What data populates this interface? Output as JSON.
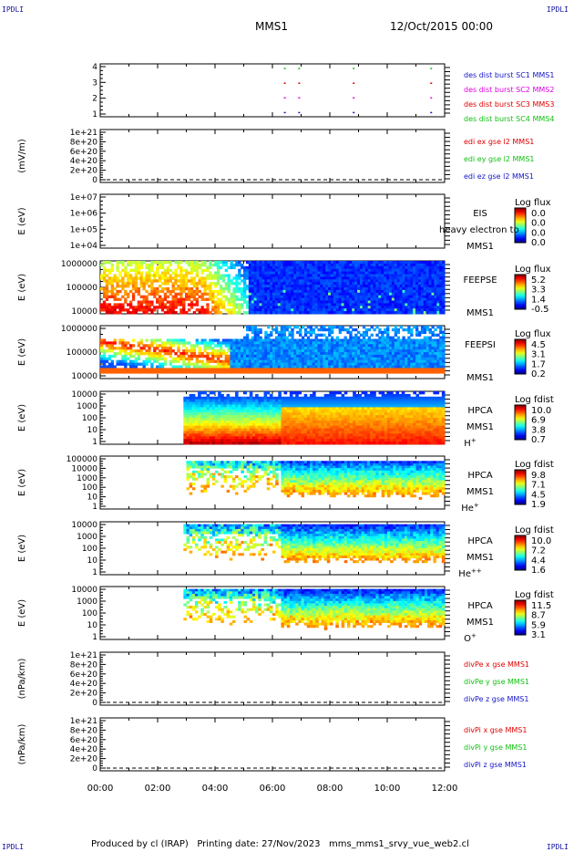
{
  "header": {
    "corner_label": "IPDLI",
    "spacecraft": "MMS1",
    "datetime": "12/Oct/2015 00:00"
  },
  "footer": {
    "text": "Produced by cl (IRAP)   Printing date: 27/Nov/2023   mms_mms1_srvy_vue_web2.cl"
  },
  "time_axis": {
    "ticks": [
      "00:00",
      "02:00",
      "04:00",
      "06:00",
      "08:00",
      "10:00",
      "12:00"
    ],
    "range_hours": [
      0,
      12
    ]
  },
  "colors": {
    "blue": "#1414c8",
    "magenta": "#e000e0",
    "red": "#e00000",
    "green": "#10c010"
  },
  "chart_data": [
    {
      "type": "scatter",
      "id": "burst",
      "ylabel": "",
      "yticks": [
        "1",
        "2",
        "3",
        "4"
      ],
      "ylim": [
        0.7,
        4.3
      ],
      "legend": [
        {
          "label": "des dist burst SC1 MMS1",
          "color": "#1414c8"
        },
        {
          "label": "des dist burst SC2 MMS2",
          "color": "#e000e0"
        },
        {
          "label": "des dist burst SC3 MMS3",
          "color": "#e00000"
        },
        {
          "label": "des dist burst SC4 MMS4",
          "color": "#10c010"
        }
      ],
      "series": [
        {
          "name": "des dist burst SC1 MMS1",
          "y": 1,
          "x": [
            6.4,
            6.9,
            8.8,
            11.5
          ]
        },
        {
          "name": "des dist burst SC2 MMS2",
          "y": 2,
          "x": [
            6.4,
            6.9,
            8.8,
            11.5
          ]
        },
        {
          "name": "des dist burst SC3 MMS3",
          "y": 3,
          "x": [
            6.4,
            6.9,
            8.8,
            11.5
          ]
        },
        {
          "name": "des dist burst SC4 MMS4",
          "y": 4,
          "x": [
            6.4,
            6.9,
            8.8,
            11.5
          ]
        }
      ]
    },
    {
      "type": "line",
      "id": "edi",
      "ylabel": "(mV/m)",
      "yticks": [
        "0",
        "2e+20",
        "4e+20",
        "6e+20",
        "8e+20",
        "1e+21"
      ],
      "ylim": [
        0,
        1.1e+21
      ],
      "legend": [
        {
          "label": "edi ex gse l2 MMS1",
          "color": "#e00000"
        },
        {
          "label": "edi ey gse l2 MMS1",
          "color": "#10c010"
        },
        {
          "label": "edi ez gse l2 MMS1",
          "color": "#1414c8"
        }
      ],
      "zero_line": true
    },
    {
      "type": "heatmap",
      "id": "eis",
      "ylabel": "E (eV)",
      "yticks": [
        "1e+04",
        "1e+05",
        "1e+06",
        "1e+07"
      ],
      "label_lines": [
        "EIS",
        "",
        "MMS1"
      ],
      "overlay_text": "heavy electron to",
      "colorbar": {
        "title": "Log flux",
        "ticks": [
          "0.0",
          "0.0",
          "0.0",
          "0.0"
        ]
      }
    },
    {
      "type": "heatmap",
      "id": "feepse",
      "ylabel": "E (eV)",
      "yticks": [
        "10000",
        "100000",
        "1000000"
      ],
      "label_lines": [
        "FEEPSE",
        "",
        "MMS1"
      ],
      "colorbar": {
        "title": "Log flux",
        "ticks": [
          "5.2",
          "3.3",
          "1.4",
          "-0.5"
        ]
      }
    },
    {
      "type": "heatmap",
      "id": "feepsi",
      "ylabel": "E (eV)",
      "yticks": [
        "10000",
        "100000",
        "1000000"
      ],
      "label_lines": [
        "FEEPSI",
        "",
        "MMS1"
      ],
      "colorbar": {
        "title": "Log flux",
        "ticks": [
          "4.5",
          "3.1",
          "1.7",
          "0.2"
        ]
      }
    },
    {
      "type": "heatmap",
      "id": "hpca_h",
      "ylabel": "E (eV)",
      "yticks": [
        "1",
        "10",
        "100",
        "1000",
        "10000"
      ],
      "label_lines": [
        "HPCA",
        "MMS1",
        "H+"
      ],
      "colorbar": {
        "title": "Log fdist",
        "ticks": [
          "10.0",
          "6.9",
          "3.8",
          "0.7"
        ]
      }
    },
    {
      "type": "heatmap",
      "id": "hpca_he",
      "ylabel": "E (eV)",
      "yticks": [
        "1",
        "10",
        "100",
        "1000",
        "10000",
        "100000"
      ],
      "label_lines": [
        "HPCA",
        "MMS1",
        "He+"
      ],
      "colorbar": {
        "title": "Log fdist",
        "ticks": [
          "9.8",
          "7.1",
          "4.5",
          "1.9"
        ]
      }
    },
    {
      "type": "heatmap",
      "id": "hpca_hepp",
      "ylabel": "E (eV)",
      "yticks": [
        "1",
        "10",
        "100",
        "1000",
        "10000"
      ],
      "label_lines": [
        "HPCA",
        "MMS1",
        "He++"
      ],
      "colorbar": {
        "title": "Log fdist",
        "ticks": [
          "10.0",
          "7.2",
          "4.4",
          "1.6"
        ]
      }
    },
    {
      "type": "heatmap",
      "id": "hpca_o",
      "ylabel": "E (eV)",
      "yticks": [
        "1",
        "10",
        "100",
        "1000",
        "10000"
      ],
      "label_lines": [
        "HPCA",
        "MMS1",
        "O+"
      ],
      "colorbar": {
        "title": "Log fdist",
        "ticks": [
          "11.5",
          "8.7",
          "5.9",
          "3.1"
        ]
      }
    },
    {
      "type": "line",
      "id": "divpe",
      "ylabel": "(nPa/km)",
      "yticks": [
        "0",
        "2e+20",
        "4e+20",
        "6e+20",
        "8e+20",
        "1e+21"
      ],
      "ylim": [
        0,
        1.1e+21
      ],
      "legend": [
        {
          "label": "divPe x gse MMS1",
          "color": "#e00000"
        },
        {
          "label": "divPe y gse MMS1",
          "color": "#10c010"
        },
        {
          "label": "divPe z gse MMS1",
          "color": "#1414c8"
        }
      ],
      "zero_line": true
    },
    {
      "type": "line",
      "id": "divpi",
      "ylabel": "(nPa/km)",
      "yticks": [
        "0",
        "2e+20",
        "4e+20",
        "6e+20",
        "8e+20",
        "1e+21"
      ],
      "ylim": [
        0,
        1.1e+21
      ],
      "legend": [
        {
          "label": "divPi x gse MMS1",
          "color": "#e00000"
        },
        {
          "label": "divPi y gse MMS1",
          "color": "#10c010"
        },
        {
          "label": "divPi z gse MMS1",
          "color": "#1414c8"
        }
      ],
      "zero_line": true
    }
  ]
}
